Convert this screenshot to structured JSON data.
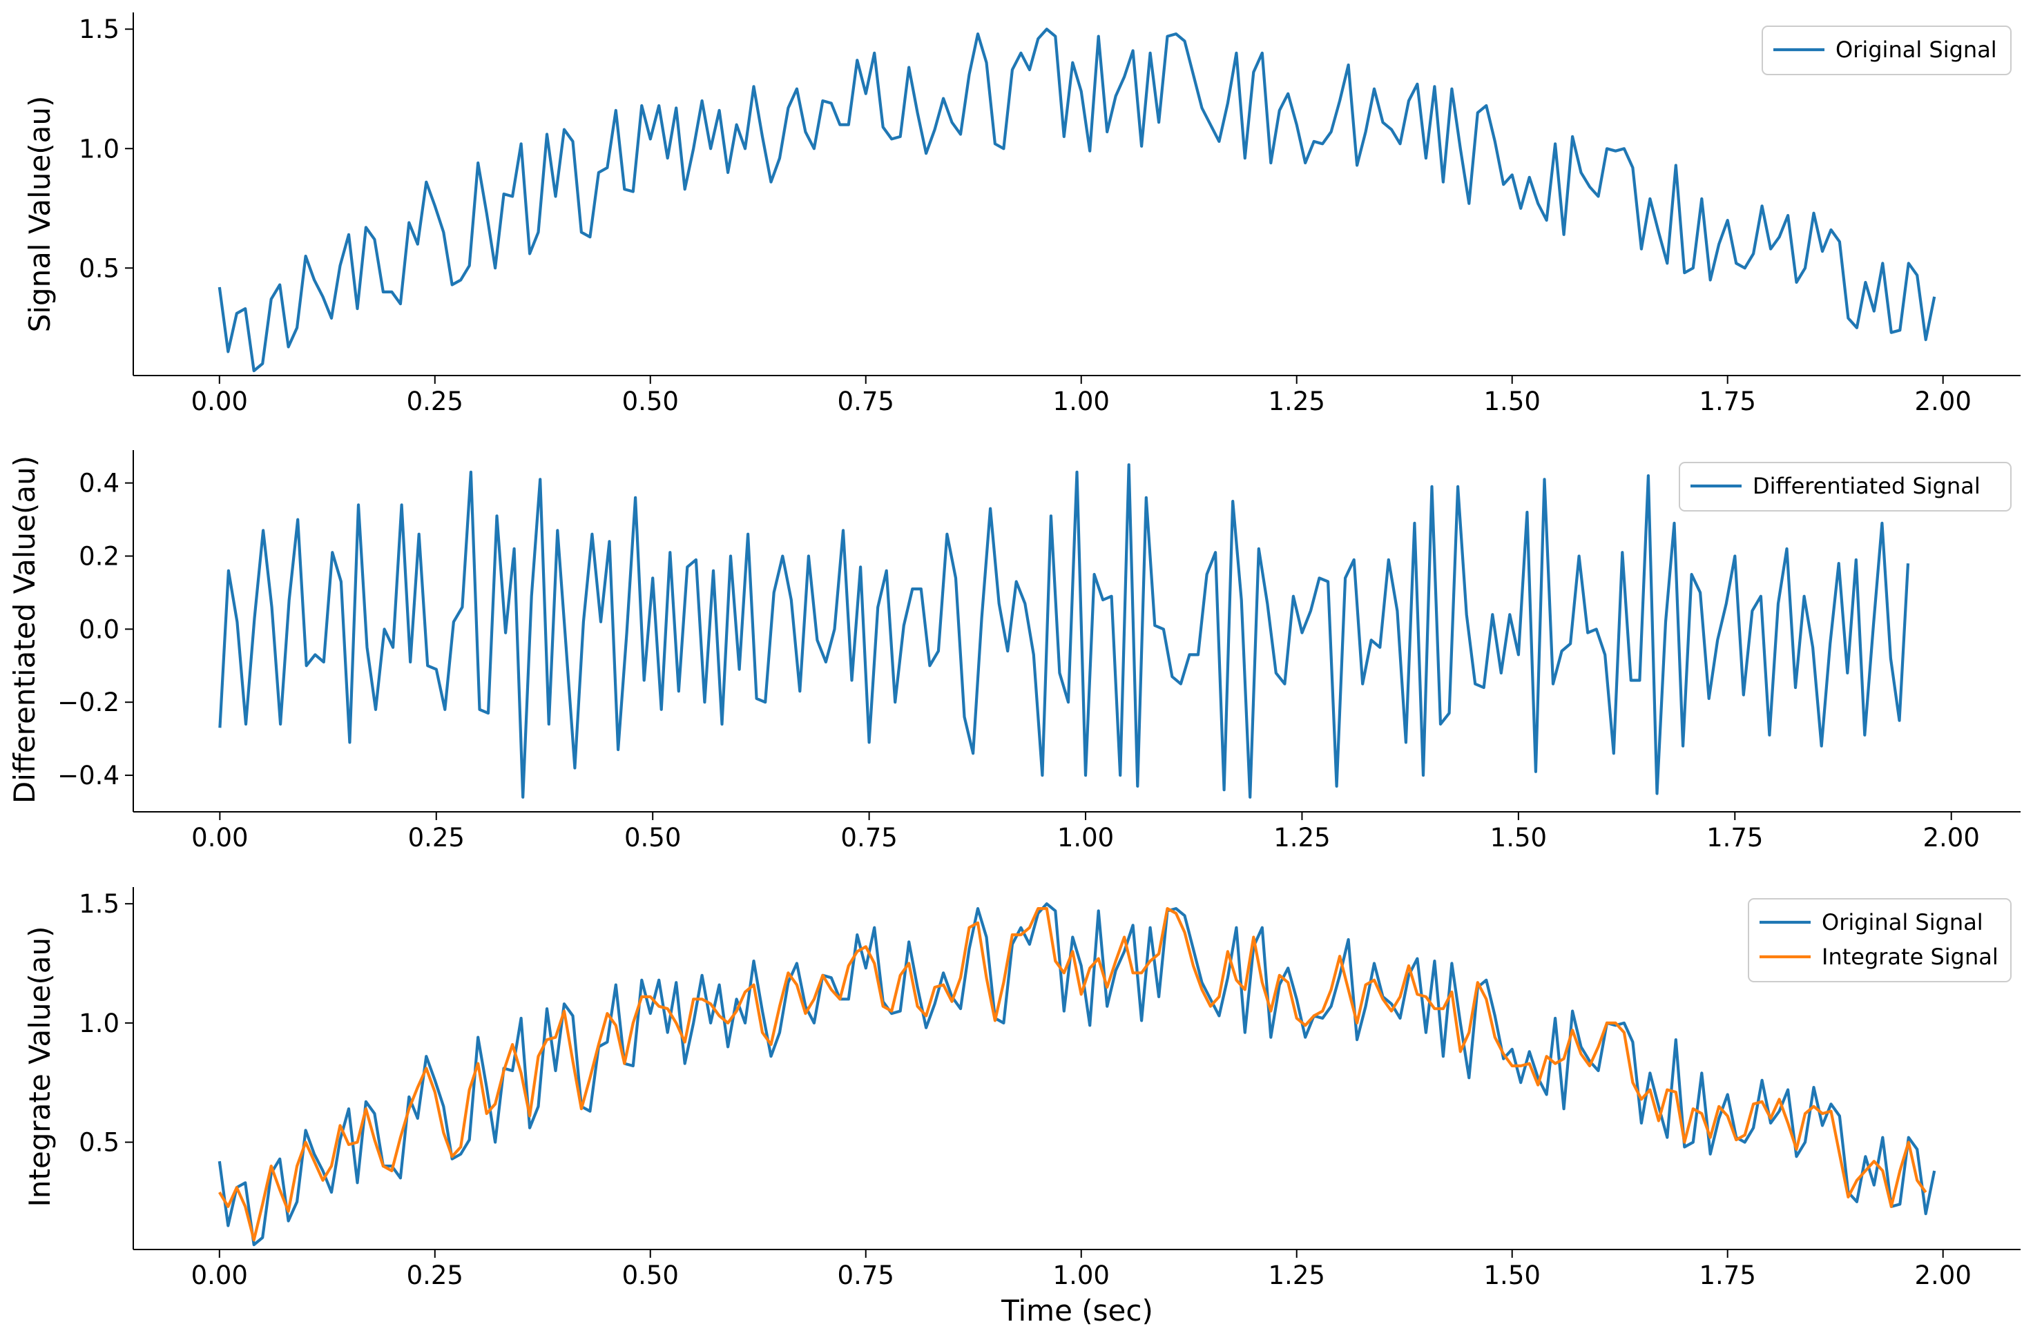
{
  "figure": {
    "xlabel": "Time (sec)"
  },
  "chart_data": [
    {
      "type": "line",
      "title": "",
      "xlabel": "",
      "ylabel": "Signal Value(au)",
      "xlim": [
        -0.1,
        2.09
      ],
      "ylim": [
        0.05,
        1.57
      ],
      "xticks": [
        0.0,
        0.25,
        0.5,
        0.75,
        1.0,
        1.25,
        1.5,
        1.75,
        2.0
      ],
      "xtick_labels": [
        "0.00",
        "0.25",
        "0.50",
        "0.75",
        "1.00",
        "1.25",
        "1.50",
        "1.75",
        "2.00"
      ],
      "yticks": [
        0.5,
        1.0,
        1.5
      ],
      "ytick_labels": [
        "0.5",
        "1.0",
        "1.5"
      ],
      "grid": false,
      "legend": "top-right",
      "series": [
        {
          "name": "Original Signal",
          "color": "#1f77b4",
          "x_start": 0.0,
          "x_step": 0.01,
          "values": [
            0.42,
            0.15,
            0.31,
            0.33,
            0.07,
            0.1,
            0.37,
            0.43,
            0.17,
            0.25,
            0.55,
            0.45,
            0.38,
            0.29,
            0.51,
            0.64,
            0.33,
            0.67,
            0.62,
            0.4,
            0.4,
            0.35,
            0.69,
            0.6,
            0.86,
            0.76,
            0.65,
            0.43,
            0.45,
            0.51,
            0.94,
            0.73,
            0.5,
            0.81,
            0.8,
            1.02,
            0.56,
            0.65,
            1.06,
            0.8,
            1.08,
            1.03,
            0.65,
            0.63,
            0.9,
            0.92,
            1.16,
            0.83,
            0.82,
            1.18,
            1.04,
            1.18,
            0.96,
            1.17,
            0.83,
            1.0,
            1.2,
            1.0,
            1.16,
            0.9,
            1.1,
            1.0,
            1.26,
            1.05,
            0.86,
            0.96,
            1.17,
            1.25,
            1.07,
            1.0,
            1.2,
            1.19,
            1.1,
            1.1,
            1.37,
            1.23,
            1.4,
            1.09,
            1.04,
            1.05,
            1.34,
            1.15,
            0.98,
            1.08,
            1.21,
            1.11,
            1.06,
            1.31,
            1.48,
            1.36,
            1.02,
            1.0,
            1.33,
            1.4,
            1.33,
            1.46,
            1.5,
            1.47,
            1.05,
            1.36,
            1.24,
            0.99,
            1.47,
            1.07,
            1.22,
            1.3,
            1.41,
            1.01,
            1.4,
            1.11,
            1.47,
            1.48,
            1.45,
            1.31,
            1.17,
            1.1,
            1.03,
            1.19,
            1.4,
            0.96,
            1.32,
            1.4,
            0.94,
            1.16,
            1.23,
            1.1,
            0.94,
            1.03,
            1.02,
            1.07,
            1.2,
            1.35,
            0.93,
            1.07,
            1.25,
            1.11,
            1.08,
            1.02,
            1.2,
            1.27,
            0.96,
            1.26,
            0.86,
            1.25,
            1.0,
            0.77,
            1.15,
            1.18,
            1.03,
            0.85,
            0.89,
            0.75,
            0.88,
            0.77,
            0.7,
            1.02,
            0.64,
            1.05,
            0.9,
            0.84,
            0.8,
            1.0,
            0.99,
            1.0,
            0.92,
            0.58,
            0.79,
            0.65,
            0.52,
            0.93,
            0.48,
            0.5,
            0.79,
            0.45,
            0.6,
            0.7,
            0.52,
            0.5,
            0.56,
            0.76,
            0.58,
            0.63,
            0.72,
            0.44,
            0.5,
            0.73,
            0.57,
            0.66,
            0.61,
            0.29,
            0.25,
            0.44,
            0.32,
            0.52,
            0.23,
            0.24,
            0.52,
            0.47,
            0.2,
            0.38
          ]
        }
      ]
    },
    {
      "type": "line",
      "title": "",
      "xlabel": "",
      "ylabel": "Differentiated Value(au)",
      "xlim": [
        -0.1,
        2.08
      ],
      "ylim": [
        -0.5,
        0.49
      ],
      "xticks": [
        0.0,
        0.25,
        0.5,
        0.75,
        1.0,
        1.25,
        1.5,
        1.75,
        2.0
      ],
      "xtick_labels": [
        "0.00",
        "0.25",
        "0.50",
        "0.75",
        "1.00",
        "1.25",
        "1.50",
        "1.75",
        "2.00"
      ],
      "yticks": [
        -0.4,
        -0.2,
        0.0,
        0.2,
        0.4
      ],
      "ytick_labels": [
        "−0.4",
        "−0.2",
        "0.0",
        "0.2",
        "0.4"
      ],
      "grid": false,
      "legend": "top-right",
      "series": [
        {
          "name": "Differentiated Signal",
          "color": "#1f77b4",
          "x_start": 0.0,
          "x_step": 0.01,
          "values": [
            -0.27,
            0.16,
            0.02,
            -0.26,
            0.03,
            0.27,
            0.06,
            -0.26,
            0.08,
            0.3,
            -0.1,
            -0.07,
            -0.09,
            0.21,
            0.13,
            -0.31,
            0.34,
            -0.05,
            -0.22,
            0.0,
            -0.05,
            0.34,
            -0.09,
            0.26,
            -0.1,
            -0.11,
            -0.22,
            0.02,
            0.06,
            0.43,
            -0.22,
            -0.23,
            0.31,
            -0.01,
            0.22,
            -0.46,
            0.09,
            0.41,
            -0.26,
            0.27,
            -0.05,
            -0.38,
            0.02,
            0.26,
            0.02,
            0.24,
            -0.33,
            -0.01,
            0.36,
            -0.14,
            0.14,
            -0.22,
            0.21,
            -0.17,
            0.17,
            0.19,
            -0.2,
            0.16,
            -0.26,
            0.2,
            -0.11,
            0.26,
            -0.19,
            -0.2,
            0.1,
            0.2,
            0.08,
            -0.17,
            0.2,
            -0.03,
            -0.09,
            0.0,
            0.27,
            -0.14,
            0.17,
            -0.31,
            0.06,
            0.16,
            -0.2,
            0.01,
            0.11,
            0.11,
            -0.1,
            -0.06,
            0.26,
            0.14,
            -0.24,
            -0.34,
            0.03,
            0.33,
            0.07,
            -0.06,
            0.13,
            0.07,
            -0.07,
            -0.4,
            0.31,
            -0.12,
            -0.2,
            0.43,
            -0.4,
            0.15,
            0.08,
            0.09,
            -0.4,
            0.45,
            -0.43,
            0.36,
            0.01,
            0.0,
            -0.13,
            -0.15,
            -0.07,
            -0.07,
            0.15,
            0.21,
            -0.44,
            0.35,
            0.08,
            -0.46,
            0.22,
            0.07,
            -0.12,
            -0.15,
            0.09,
            -0.01,
            0.05,
            0.14,
            0.13,
            -0.43,
            0.14,
            0.19,
            -0.15,
            -0.03,
            -0.05,
            0.19,
            0.05,
            -0.31,
            0.29,
            -0.4,
            0.39,
            -0.26,
            -0.23,
            0.39,
            0.04,
            -0.15,
            -0.16,
            0.04,
            -0.12,
            0.04,
            -0.07,
            0.32,
            -0.39,
            0.41,
            -0.15,
            -0.06,
            -0.04,
            0.2,
            -0.01,
            0.0,
            -0.07,
            -0.34,
            0.21,
            -0.14,
            -0.14,
            0.42,
            -0.45,
            0.02,
            0.29,
            -0.32,
            0.15,
            0.1,
            -0.19,
            -0.03,
            0.07,
            0.2,
            -0.18,
            0.05,
            0.09,
            -0.29,
            0.07,
            0.22,
            -0.16,
            0.09,
            -0.05,
            -0.32,
            -0.04,
            0.18,
            -0.12,
            0.19,
            -0.29,
            0.01,
            0.29,
            -0.08,
            -0.25,
            0.18
          ]
        }
      ]
    },
    {
      "type": "line",
      "title": "",
      "xlabel": "Time (sec)",
      "ylabel": "Integrate Value(au)",
      "xlim": [
        -0.1,
        2.09
      ],
      "ylim": [
        0.05,
        1.57
      ],
      "xticks": [
        0.0,
        0.25,
        0.5,
        0.75,
        1.0,
        1.25,
        1.5,
        1.75,
        2.0
      ],
      "xtick_labels": [
        "0.00",
        "0.25",
        "0.50",
        "0.75",
        "1.00",
        "1.25",
        "1.50",
        "1.75",
        "2.00"
      ],
      "yticks": [
        0.5,
        1.0,
        1.5
      ],
      "ytick_labels": [
        "0.5",
        "1.0",
        "1.5"
      ],
      "grid": false,
      "legend": "top-right",
      "series": [
        {
          "name": "Original Signal",
          "color": "#1f77b4",
          "x_start": 0.0,
          "x_step": 0.01,
          "values": [
            0.42,
            0.15,
            0.31,
            0.33,
            0.07,
            0.1,
            0.37,
            0.43,
            0.17,
            0.25,
            0.55,
            0.45,
            0.38,
            0.29,
            0.51,
            0.64,
            0.33,
            0.67,
            0.62,
            0.4,
            0.4,
            0.35,
            0.69,
            0.6,
            0.86,
            0.76,
            0.65,
            0.43,
            0.45,
            0.51,
            0.94,
            0.73,
            0.5,
            0.81,
            0.8,
            1.02,
            0.56,
            0.65,
            1.06,
            0.8,
            1.08,
            1.03,
            0.65,
            0.63,
            0.9,
            0.92,
            1.16,
            0.83,
            0.82,
            1.18,
            1.04,
            1.18,
            0.96,
            1.17,
            0.83,
            1.0,
            1.2,
            1.0,
            1.16,
            0.9,
            1.1,
            1.0,
            1.26,
            1.05,
            0.86,
            0.96,
            1.17,
            1.25,
            1.07,
            1.0,
            1.2,
            1.19,
            1.1,
            1.1,
            1.37,
            1.23,
            1.4,
            1.09,
            1.04,
            1.05,
            1.34,
            1.15,
            0.98,
            1.08,
            1.21,
            1.11,
            1.06,
            1.31,
            1.48,
            1.36,
            1.02,
            1.0,
            1.33,
            1.4,
            1.33,
            1.46,
            1.5,
            1.47,
            1.05,
            1.36,
            1.24,
            0.99,
            1.47,
            1.07,
            1.22,
            1.3,
            1.41,
            1.01,
            1.4,
            1.11,
            1.47,
            1.48,
            1.45,
            1.31,
            1.17,
            1.1,
            1.03,
            1.19,
            1.4,
            0.96,
            1.32,
            1.4,
            0.94,
            1.16,
            1.23,
            1.1,
            0.94,
            1.03,
            1.02,
            1.07,
            1.2,
            1.35,
            0.93,
            1.07,
            1.25,
            1.11,
            1.08,
            1.02,
            1.2,
            1.27,
            0.96,
            1.26,
            0.86,
            1.25,
            1.0,
            0.77,
            1.15,
            1.18,
            1.03,
            0.85,
            0.89,
            0.75,
            0.88,
            0.77,
            0.7,
            1.02,
            0.64,
            1.05,
            0.9,
            0.84,
            0.8,
            1.0,
            0.99,
            1.0,
            0.92,
            0.58,
            0.79,
            0.65,
            0.52,
            0.93,
            0.48,
            0.5,
            0.79,
            0.45,
            0.6,
            0.7,
            0.52,
            0.5,
            0.56,
            0.76,
            0.58,
            0.63,
            0.72,
            0.44,
            0.5,
            0.73,
            0.57,
            0.66,
            0.61,
            0.29,
            0.25,
            0.44,
            0.32,
            0.52,
            0.23,
            0.24,
            0.52,
            0.47,
            0.2,
            0.38
          ]
        },
        {
          "name": "Integrate Signal",
          "color": "#ff7f0e",
          "x_start": 0.0,
          "x_step": 0.01,
          "values": [
            0.29,
            0.23,
            0.31,
            0.23,
            0.09,
            0.24,
            0.4,
            0.3,
            0.21,
            0.4,
            0.5,
            0.42,
            0.34,
            0.4,
            0.57,
            0.49,
            0.5,
            0.64,
            0.51,
            0.4,
            0.38,
            0.52,
            0.64,
            0.73,
            0.81,
            0.71,
            0.54,
            0.44,
            0.48,
            0.72,
            0.83,
            0.62,
            0.66,
            0.8,
            0.91,
            0.79,
            0.61,
            0.86,
            0.93,
            0.94,
            1.05,
            0.84,
            0.64,
            0.77,
            0.91,
            1.04,
            0.99,
            0.83,
            1.0,
            1.11,
            1.11,
            1.07,
            1.06,
            1.0,
            0.92,
            1.1,
            1.1,
            1.08,
            1.03,
            1.0,
            1.05,
            1.13,
            1.16,
            0.96,
            0.91,
            1.07,
            1.21,
            1.16,
            1.04,
            1.1,
            1.2,
            1.14,
            1.1,
            1.24,
            1.3,
            1.32,
            1.25,
            1.07,
            1.05,
            1.2,
            1.25,
            1.07,
            1.03,
            1.15,
            1.16,
            1.09,
            1.19,
            1.4,
            1.42,
            1.19,
            1.01,
            1.17,
            1.37,
            1.37,
            1.4,
            1.48,
            1.48,
            1.26,
            1.21,
            1.3,
            1.12,
            1.23,
            1.27,
            1.15,
            1.26,
            1.36,
            1.21,
            1.21,
            1.26,
            1.29,
            1.48,
            1.46,
            1.38,
            1.24,
            1.14,
            1.07,
            1.11,
            1.3,
            1.18,
            1.14,
            1.36,
            1.17,
            1.05,
            1.2,
            1.17,
            1.02,
            0.99,
            1.03,
            1.05,
            1.14,
            1.28,
            1.14,
            1.0,
            1.16,
            1.18,
            1.1,
            1.05,
            1.11,
            1.24,
            1.12,
            1.11,
            1.06,
            1.06,
            1.13,
            0.88,
            0.96,
            1.17,
            1.1,
            0.94,
            0.87,
            0.82,
            0.82,
            0.83,
            0.74,
            0.86,
            0.83,
            0.85,
            0.97,
            0.87,
            0.82,
            0.9,
            1.0,
            1.0,
            0.96,
            0.75,
            0.68,
            0.72,
            0.59,
            0.72,
            0.71,
            0.5,
            0.64,
            0.62,
            0.52,
            0.65,
            0.61,
            0.51,
            0.53,
            0.66,
            0.67,
            0.6,
            0.68,
            0.58,
            0.47,
            0.62,
            0.65,
            0.62,
            0.63,
            0.45,
            0.27,
            0.34,
            0.38,
            0.42,
            0.38,
            0.23,
            0.38,
            0.5,
            0.34,
            0.29
          ]
        }
      ]
    }
  ]
}
